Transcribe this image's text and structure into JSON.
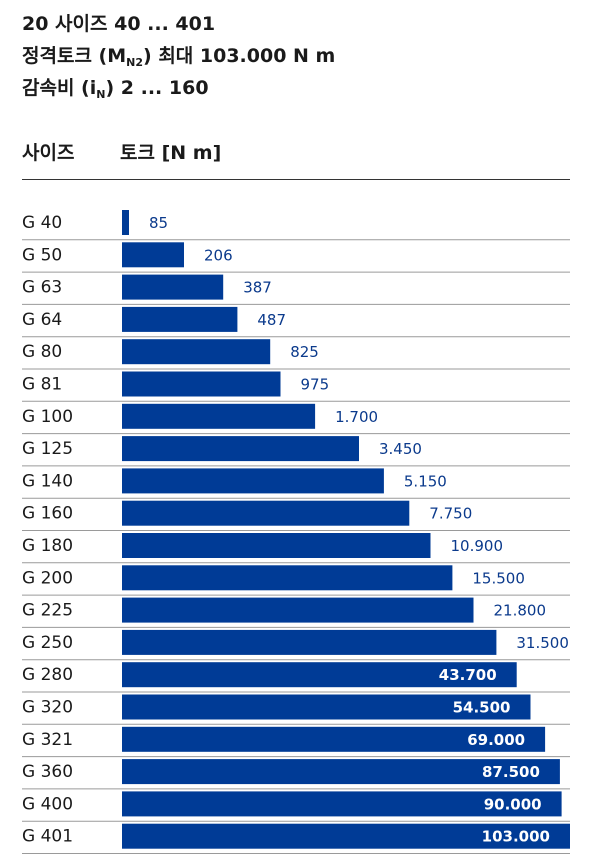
{
  "header": {
    "line1": "20 사이즈 40 ... 401",
    "line2_pre": "정격토크 (M",
    "line2_sub": "N2",
    "line2_post": ") 최대 103.000 N m",
    "line3_pre": "감속비 (i",
    "line3_sub": "N",
    "line3_post": ") 2 ... 160"
  },
  "columns": {
    "size": "사이즈",
    "torque": "토크 [N m]"
  },
  "colors": {
    "bar": "#003b96",
    "value_outside": "#0b3a8c",
    "value_inside": "#ffffff",
    "rule": "#9a9a9a"
  },
  "chart_data": {
    "type": "bar",
    "orientation": "horizontal",
    "categories": [
      "G 40",
      "G 50",
      "G 63",
      "G 64",
      "G 80",
      "G 81",
      "G 100",
      "G 125",
      "G 140",
      "G 160",
      "G 180",
      "G 200",
      "G 225",
      "G 250",
      "G 280",
      "G 320",
      "G 321",
      "G 360",
      "G 400",
      "G 401"
    ],
    "values": [
      85,
      206,
      387,
      487,
      825,
      975,
      1700,
      3450,
      5150,
      7750,
      10900,
      15500,
      21800,
      31500,
      43700,
      54500,
      69000,
      87500,
      90000,
      103000
    ],
    "value_labels": [
      "85",
      "206",
      "387",
      "487",
      "825",
      "975",
      "1.700",
      "3.450",
      "5.150",
      "7.750",
      "10.900",
      "15.500",
      "21.800",
      "31.500",
      "43.700",
      "54.500",
      "69.000",
      "87.500",
      "90.000",
      "103.000"
    ],
    "scale": "log",
    "xlabel": "토크 [N m]",
    "ylabel": "사이즈"
  }
}
